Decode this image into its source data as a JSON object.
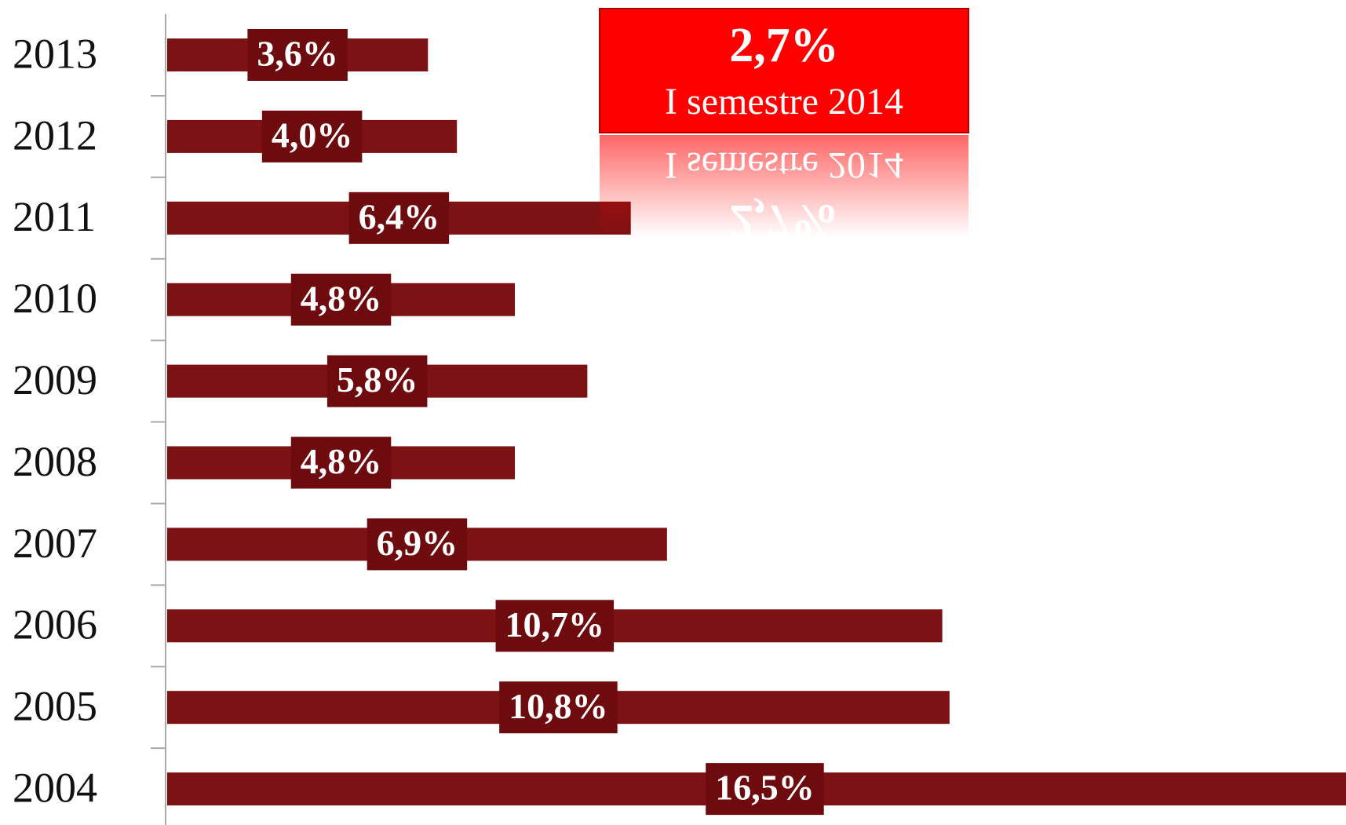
{
  "chart_data": {
    "type": "bar",
    "orientation": "horizontal",
    "categories": [
      "2013",
      "2012",
      "2011",
      "2010",
      "2009",
      "2008",
      "2007",
      "2006",
      "2005",
      "2004"
    ],
    "values": [
      3.6,
      4.0,
      6.4,
      4.8,
      5.8,
      4.8,
      6.9,
      10.7,
      10.8,
      16.5
    ],
    "value_labels": [
      "3,6%",
      "4,0%",
      "6,4%",
      "4,8%",
      "5,8%",
      "4,8%",
      "6,9%",
      "10,7%",
      "10,8%",
      "16,5%"
    ],
    "color": "#7d1214",
    "label_box_color": "#6e0b0e",
    "annotation": {
      "value": "2,7%",
      "text": "I semestre 2014",
      "color": "#ff0000"
    }
  }
}
